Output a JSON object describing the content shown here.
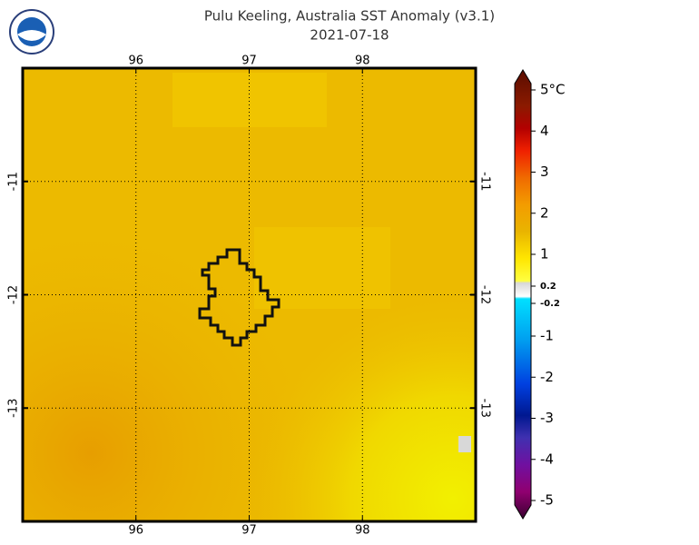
{
  "header": {
    "title": "Pulu Keeling, Australia SST Anomaly (v3.1)",
    "date": "2021-07-18"
  },
  "map": {
    "xlim": [
      95,
      99
    ],
    "ylim": [
      -14,
      -10
    ],
    "xticks": [
      96,
      97,
      98
    ],
    "yticks": [
      -11,
      -12,
      -13
    ]
  },
  "colorbar": {
    "ticks": [
      {
        "value": 5,
        "label": "5°C"
      },
      4,
      3,
      2,
      1,
      0.2,
      -0.2,
      -1,
      -2,
      -3,
      -4,
      -5
    ]
  }
}
